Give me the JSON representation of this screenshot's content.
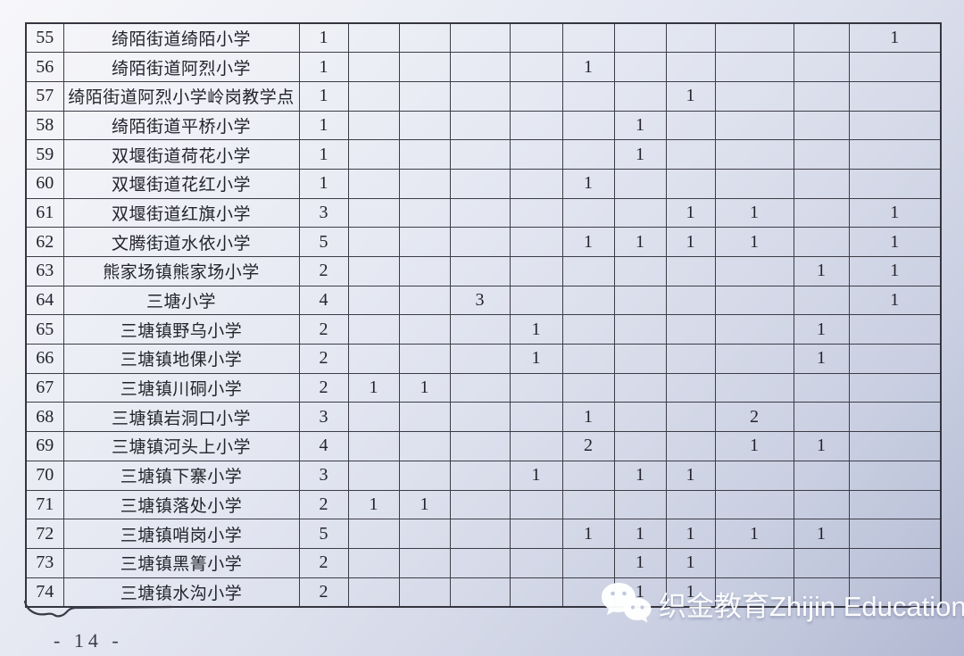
{
  "page": {
    "page_number": "- 14 -",
    "watermark": {
      "icon": "wechat-icon",
      "text": "织金教育Zhijin Education"
    }
  },
  "colors": {
    "paper_top": "#f7f7fa",
    "paper_bottom": "#b2b8d2",
    "grid_line": "#3c3c46",
    "ink": "#23232b",
    "watermark_white": "#ffffff"
  },
  "table": {
    "columns": [
      "row-number",
      "school-name",
      "total",
      "c1",
      "c2",
      "c3",
      "c4",
      "c5",
      "c6",
      "c7",
      "c8",
      "c9",
      "c10"
    ],
    "rows": [
      {
        "no": "55",
        "name": "绮陌街道绮陌小学",
        "total": "1",
        "cells": [
          "",
          "",
          "",
          "",
          "",
          "",
          "",
          "",
          "",
          "1"
        ]
      },
      {
        "no": "56",
        "name": "绮陌街道阿烈小学",
        "total": "1",
        "cells": [
          "",
          "",
          "",
          "",
          "1",
          "",
          "",
          "",
          "",
          ""
        ]
      },
      {
        "no": "57",
        "name": "绮陌街道阿烈小学岭岗教学点",
        "total": "1",
        "cells": [
          "",
          "",
          "",
          "",
          "",
          "",
          "1",
          "",
          "",
          ""
        ]
      },
      {
        "no": "58",
        "name": "绮陌街道平桥小学",
        "total": "1",
        "cells": [
          "",
          "",
          "",
          "",
          "",
          "1",
          "",
          "",
          "",
          ""
        ]
      },
      {
        "no": "59",
        "name": "双堰街道荷花小学",
        "total": "1",
        "cells": [
          "",
          "",
          "",
          "",
          "",
          "1",
          "",
          "",
          "",
          ""
        ]
      },
      {
        "no": "60",
        "name": "双堰街道花红小学",
        "total": "1",
        "cells": [
          "",
          "",
          "",
          "",
          "1",
          "",
          "",
          "",
          "",
          ""
        ]
      },
      {
        "no": "61",
        "name": "双堰街道红旗小学",
        "total": "3",
        "cells": [
          "",
          "",
          "",
          "",
          "",
          "",
          "1",
          "1",
          "",
          "1"
        ]
      },
      {
        "no": "62",
        "name": "文腾街道水依小学",
        "total": "5",
        "cells": [
          "",
          "",
          "",
          "",
          "1",
          "1",
          "1",
          "1",
          "",
          "1"
        ]
      },
      {
        "no": "63",
        "name": "熊家场镇熊家场小学",
        "total": "2",
        "cells": [
          "",
          "",
          "",
          "",
          "",
          "",
          "",
          "",
          "1",
          "1"
        ]
      },
      {
        "no": "64",
        "name": "三塘小学",
        "total": "4",
        "cells": [
          "",
          "",
          "3",
          "",
          "",
          "",
          "",
          "",
          "",
          "1"
        ]
      },
      {
        "no": "65",
        "name": "三塘镇野乌小学",
        "total": "2",
        "cells": [
          "",
          "",
          "",
          "1",
          "",
          "",
          "",
          "",
          "1",
          ""
        ]
      },
      {
        "no": "66",
        "name": "三塘镇地倮小学",
        "total": "2",
        "cells": [
          "",
          "",
          "",
          "1",
          "",
          "",
          "",
          "",
          "1",
          ""
        ]
      },
      {
        "no": "67",
        "name": "三塘镇川硐小学",
        "total": "2",
        "cells": [
          "1",
          "1",
          "",
          "",
          "",
          "",
          "",
          "",
          "",
          ""
        ]
      },
      {
        "no": "68",
        "name": "三塘镇岩洞口小学",
        "total": "3",
        "cells": [
          "",
          "",
          "",
          "",
          "1",
          "",
          "",
          "2",
          "",
          ""
        ]
      },
      {
        "no": "69",
        "name": "三塘镇河头上小学",
        "total": "4",
        "cells": [
          "",
          "",
          "",
          "",
          "2",
          "",
          "",
          "1",
          "1",
          ""
        ]
      },
      {
        "no": "70",
        "name": "三塘镇下寨小学",
        "total": "3",
        "cells": [
          "",
          "",
          "",
          "1",
          "",
          "1",
          "1",
          "",
          "",
          ""
        ]
      },
      {
        "no": "71",
        "name": "三塘镇落处小学",
        "total": "2",
        "cells": [
          "1",
          "1",
          "",
          "",
          "",
          "",
          "",
          "",
          "",
          ""
        ]
      },
      {
        "no": "72",
        "name": "三塘镇哨岗小学",
        "total": "5",
        "cells": [
          "",
          "",
          "",
          "",
          "1",
          "1",
          "1",
          "1",
          "1",
          ""
        ]
      },
      {
        "no": "73",
        "name": "三塘镇黑箐小学",
        "total": "2",
        "cells": [
          "",
          "",
          "",
          "",
          "",
          "1",
          "1",
          "",
          "",
          ""
        ]
      },
      {
        "no": "74",
        "name": "三塘镇水沟小学",
        "total": "2",
        "cells": [
          "",
          "",
          "",
          "",
          "",
          "1",
          "1",
          "",
          "",
          ""
        ]
      }
    ]
  }
}
